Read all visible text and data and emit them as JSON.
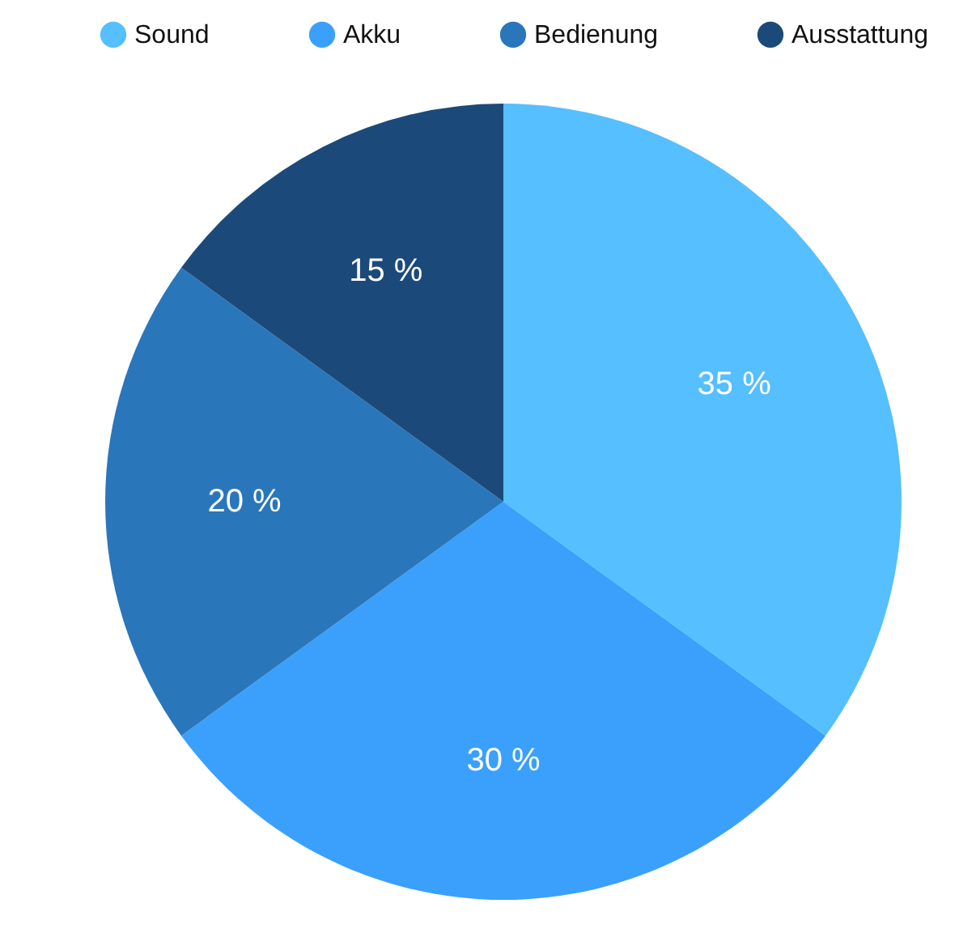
{
  "chart_data": {
    "type": "pie",
    "categories": [
      "Sound",
      "Akku",
      "Bedienung",
      "Ausstattung"
    ],
    "values": [
      35,
      30,
      20,
      15
    ],
    "colors": [
      "#55bfff",
      "#3aa0fb",
      "#2a76bb",
      "#1b4a7a"
    ],
    "value_labels": [
      "35 %",
      "30 %",
      "20 %",
      "15 %"
    ],
    "legend": "top"
  }
}
